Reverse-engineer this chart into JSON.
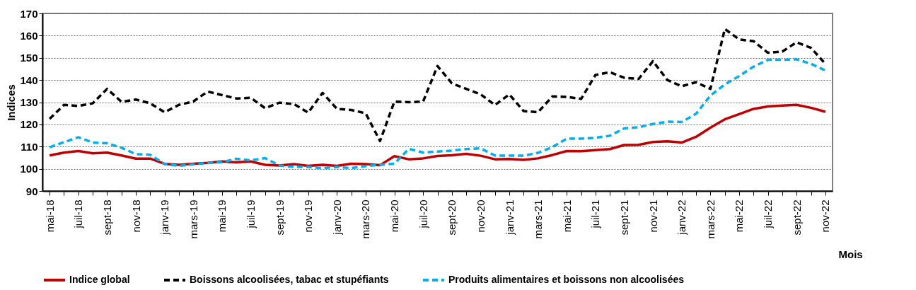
{
  "chart_data": {
    "type": "line",
    "xlabel": "Mois",
    "ylabel": "Indices",
    "categories": [
      "mai-18",
      null,
      "juil-18",
      null,
      "sept-18",
      null,
      "nov-18",
      null,
      "janv-19",
      null,
      "mars-19",
      null,
      "mai-19",
      null,
      "juil-19",
      null,
      "sept-19",
      null,
      "nov-19",
      null,
      "janv-20",
      null,
      "mars-20",
      null,
      "mai-20",
      null,
      "juil-20",
      null,
      "sept-20",
      null,
      "nov-20",
      null,
      "janv-21",
      null,
      "mars-21",
      null,
      "mai-21",
      null,
      "juil-21",
      null,
      "sept-21",
      null,
      "nov-21",
      null,
      "janv-22",
      null,
      "mars-22",
      null,
      "mai-22",
      null,
      "juil-22",
      null,
      "sept-22",
      null,
      "nov-22"
    ],
    "series": [
      {
        "name": "Indice global",
        "color": "#c00000",
        "line_style": "solid",
        "values": [
          106,
          107.3,
          108,
          107,
          107.3,
          106,
          104.6,
          104.6,
          102.2,
          101.8,
          102.3,
          102.7,
          103.3,
          102.9,
          103.3,
          101.8,
          101.5,
          102.1,
          101.3,
          101.8,
          101.3,
          102.3,
          102.1,
          101.6,
          105.7,
          104.3,
          104.7,
          105.8,
          106.1,
          106.7,
          105.9,
          104.3,
          104.4,
          104,
          104.7,
          106.2,
          108,
          107.9,
          108.4,
          108.9,
          110.7,
          110.8,
          112.1,
          112.4,
          111.8,
          114.4,
          118.5,
          122.3,
          124.6,
          127,
          128.1,
          128.5,
          128.8,
          127.5,
          125.7
        ]
      },
      {
        "name": "Boissons alcoolisées, tabac et stupéfiants",
        "color": "#000000",
        "line_style": "dashed",
        "values": [
          122.5,
          128.8,
          128.3,
          129.5,
          136,
          130.2,
          131.2,
          129.5,
          125.5,
          128.8,
          130.3,
          134.8,
          133.2,
          131.7,
          132,
          127.3,
          129.8,
          129.2,
          125.3,
          134.2,
          127,
          126.5,
          125,
          112.5,
          130.3,
          130,
          130.3,
          146.3,
          138.5,
          136,
          133.6,
          128.7,
          133.5,
          126,
          125.5,
          132.6,
          132.4,
          131.5,
          142.3,
          143.5,
          141,
          140.5,
          148.5,
          140,
          137.2,
          139,
          136,
          163,
          158.3,
          157.5,
          152.3,
          152.8,
          157,
          154.5,
          147.3
        ]
      },
      {
        "name": "Produits alimentaires et boissons non alcoolisées",
        "color": "#00b0f0",
        "line_style": "dashed",
        "values": [
          109.7,
          112,
          114.2,
          111.8,
          111.5,
          109.5,
          106.6,
          106.3,
          102.2,
          101.3,
          102,
          102.6,
          103,
          104.5,
          103.8,
          104.8,
          101.5,
          100.8,
          100.8,
          100.3,
          100.8,
          100.3,
          101.2,
          101.8,
          102.3,
          109,
          107.3,
          107.8,
          108.2,
          108.9,
          109.2,
          106,
          105.9,
          105.9,
          107.2,
          109.8,
          113.6,
          113.6,
          114,
          114.9,
          118.2,
          118.7,
          120.2,
          121.2,
          121.1,
          124.8,
          133,
          138,
          141.8,
          146,
          149.1,
          149.1,
          149.3,
          147.3,
          144.3
        ]
      }
    ],
    "ylim": [
      90,
      170
    ],
    "yticks": [
      90,
      100,
      110,
      120,
      130,
      140,
      150,
      160,
      170
    ],
    "grid": "y",
    "legend": "bottom",
    "marker": "none"
  }
}
